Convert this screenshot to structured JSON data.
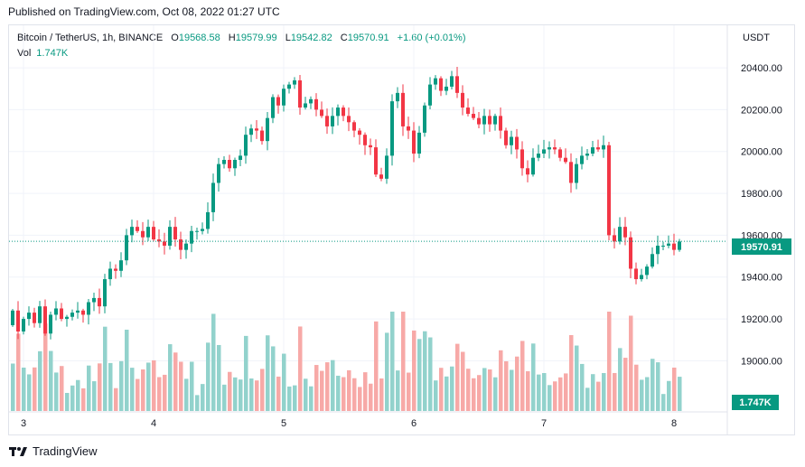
{
  "header": {
    "published": "Published on TradingView.com, Oct 08, 2022 01:27 UTC"
  },
  "legend": {
    "symbol": "Bitcoin / TetherUS, 1h, BINANCE",
    "o_label": "O",
    "o_value": "19568.58",
    "h_label": "H",
    "h_value": "19579.99",
    "l_label": "L",
    "l_value": "19542.82",
    "c_label": "C",
    "c_value": "19570.91",
    "change": "+1.60 (+0.01%)",
    "vol_label": "Vol",
    "vol_value": "1.747K"
  },
  "axis": {
    "currency": "USDT",
    "price_label": "19570.91",
    "vol_label": "1.747K"
  },
  "footer": {
    "brand": "TradingView"
  },
  "colors": {
    "up": "#089981",
    "down": "#f23645",
    "up_vol": "#92d2cc",
    "down_vol": "#f7a9a7",
    "grid": "#f0f3fa"
  },
  "chart_data": {
    "type": "candlestick",
    "ylim": [
      18760,
      20560
    ],
    "yticks": [
      19000,
      19200,
      19400,
      19600,
      19800,
      20000,
      20200,
      20400
    ],
    "ytick_labels": [
      "19000.00",
      "19200.00",
      "19400.00",
      "19600.00",
      "19800.00",
      "20000.00",
      "20200.00",
      "20400.00"
    ],
    "xtick_labels": [
      "3",
      "4",
      "5",
      "6",
      "7",
      "8"
    ],
    "xtick_index": [
      2,
      26,
      50,
      74,
      98,
      122
    ],
    "last_price": 19570.91,
    "closes": [
      19240,
      19140,
      19200,
      19230,
      19180,
      19260,
      19130,
      19220,
      19250,
      19200,
      19210,
      19230,
      19240,
      19220,
      19280,
      19300,
      19260,
      19390,
      19440,
      19430,
      19480,
      19600,
      19640,
      19620,
      19590,
      19640,
      19580,
      19570,
      19550,
      19640,
      19580,
      19530,
      19560,
      19620,
      19620,
      19630,
      19710,
      19850,
      19940,
      19960,
      19920,
      19960,
      19980,
      20080,
      20110,
      20100,
      20050,
      20160,
      20260,
      20220,
      20300,
      20320,
      20340,
      20210,
      20230,
      20250,
      20200,
      20170,
      20120,
      20170,
      20210,
      20170,
      20140,
      20100,
      20080,
      20030,
      20020,
      19890,
      19870,
      19980,
      20240,
      20280,
      20120,
      20100,
      19990,
      20090,
      20220,
      20320,
      20350,
      20290,
      20310,
      20360,
      20280,
      20210,
      20180,
      20160,
      20130,
      20170,
      20130,
      20170,
      20100,
      20030,
      20070,
      20010,
      19920,
      19890,
      19970,
      19990,
      20010,
      20020,
      20010,
      19970,
      19950,
      19850,
      19940,
      19980,
      19990,
      20020,
      20010,
      20030,
      19600,
      19570,
      19640,
      19590,
      19440,
      19390,
      19410,
      19450,
      19510,
      19550,
      19550,
      19560,
      19530,
      19570
    ]
  }
}
